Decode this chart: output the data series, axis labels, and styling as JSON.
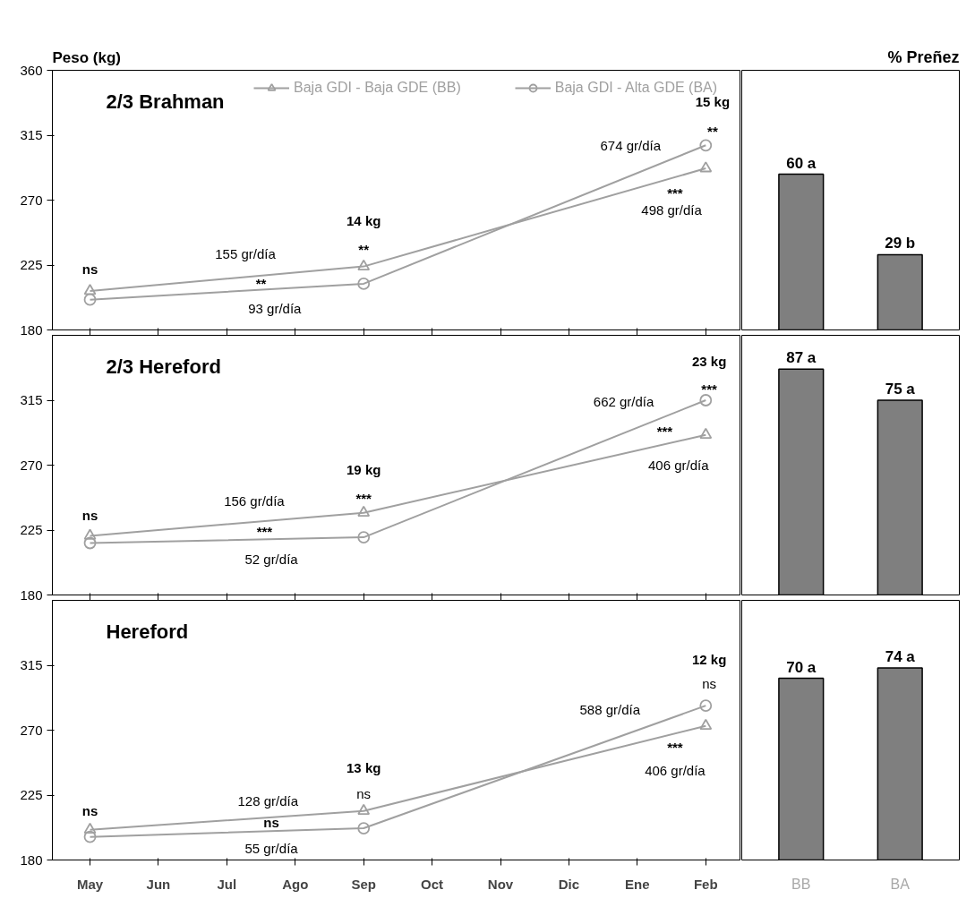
{
  "chart_data": [
    {
      "type": "line",
      "title": "2/3 Brahman",
      "ylabel": "Peso (kg)",
      "legend": "top",
      "tick_labels": "y",
      "categories": [
        null,
        null,
        null,
        null,
        null,
        null,
        null,
        null,
        null,
        null
      ],
      "ylim": [
        180,
        360
      ],
      "yticks": [
        180,
        225,
        270,
        315,
        360
      ],
      "series": [
        {
          "name": "Baja GDI - Baja GDE (BB)",
          "color": "#a0a0a0",
          "marker": "triangle",
          "values": [
            207,
            null,
            null,
            null,
            224,
            null,
            null,
            null,
            null,
            292
          ]
        },
        {
          "name": "Baja GDI - Alta GDE (BA)",
          "color": "#a0a0a0",
          "marker": "circle",
          "values": [
            201,
            null,
            null,
            null,
            212,
            null,
            null,
            null,
            null,
            308
          ]
        }
      ],
      "annotations": [
        "ns",
        "155 gr/día",
        "**",
        "93 gr/día",
        "14 kg",
        "**",
        "15 kg",
        "**",
        "674 gr/día",
        "***",
        "498 gr/día"
      ]
    },
    {
      "type": "bar",
      "title": "% Preñez",
      "tick_labels": false,
      "categories": [
        null,
        null
      ],
      "values": [
        60,
        29
      ],
      "value_labels": [
        "60 a",
        "29 b"
      ],
      "color": "#7f7f7f"
    },
    {
      "type": "line",
      "title": "2/3 Hereford",
      "tick_labels": "y",
      "categories": [
        null,
        null,
        null,
        null,
        null,
        null,
        null,
        null,
        null,
        null
      ],
      "ylim": [
        180,
        360
      ],
      "yticks": [
        180,
        225,
        270,
        315
      ],
      "series": [
        {
          "color": "#a0a0a0",
          "marker": "triangle",
          "values": [
            221,
            null,
            null,
            null,
            237,
            null,
            null,
            null,
            null,
            291
          ]
        },
        {
          "color": "#a0a0a0",
          "marker": "circle",
          "values": [
            216,
            null,
            null,
            null,
            220,
            null,
            null,
            null,
            null,
            315
          ]
        }
      ],
      "annotations": [
        "ns",
        "156 gr/día",
        "***",
        "52 gr/día",
        "19 kg",
        "***",
        "23 kg",
        "***",
        "662 gr/día",
        "***",
        "406 gr/día"
      ]
    },
    {
      "type": "bar",
      "tick_labels": false,
      "categories": [
        null,
        null
      ],
      "values": [
        87,
        75
      ],
      "value_labels": [
        "87 a",
        "75 a"
      ],
      "color": "#7f7f7f"
    },
    {
      "type": "line",
      "title": "Hereford",
      "categories": [
        "May",
        "Jun",
        "Jul",
        "Ago",
        "Sep",
        "Oct",
        "Nov",
        "Dic",
        "Ene",
        "Feb"
      ],
      "ylim": [
        180,
        360
      ],
      "yticks": [
        180,
        225,
        270,
        315
      ],
      "series": [
        {
          "color": "#a0a0a0",
          "marker": "triangle",
          "values": [
            201,
            null,
            null,
            null,
            214,
            null,
            null,
            null,
            null,
            273
          ]
        },
        {
          "color": "#a0a0a0",
          "marker": "circle",
          "values": [
            196,
            null,
            null,
            null,
            202,
            null,
            null,
            null,
            null,
            287
          ]
        }
      ],
      "annotations": [
        "ns",
        "128 gr/día",
        "ns",
        "55 gr/día",
        "13 kg",
        "ns",
        "12 kg",
        "ns",
        "588 gr/día",
        "***",
        "406 gr/día"
      ]
    },
    {
      "type": "bar",
      "tick_labels": "x",
      "categories": [
        "BB",
        "BA"
      ],
      "values": [
        70,
        74
      ],
      "value_labels": [
        "70 a",
        "74 a"
      ],
      "color": "#7f7f7f"
    }
  ]
}
